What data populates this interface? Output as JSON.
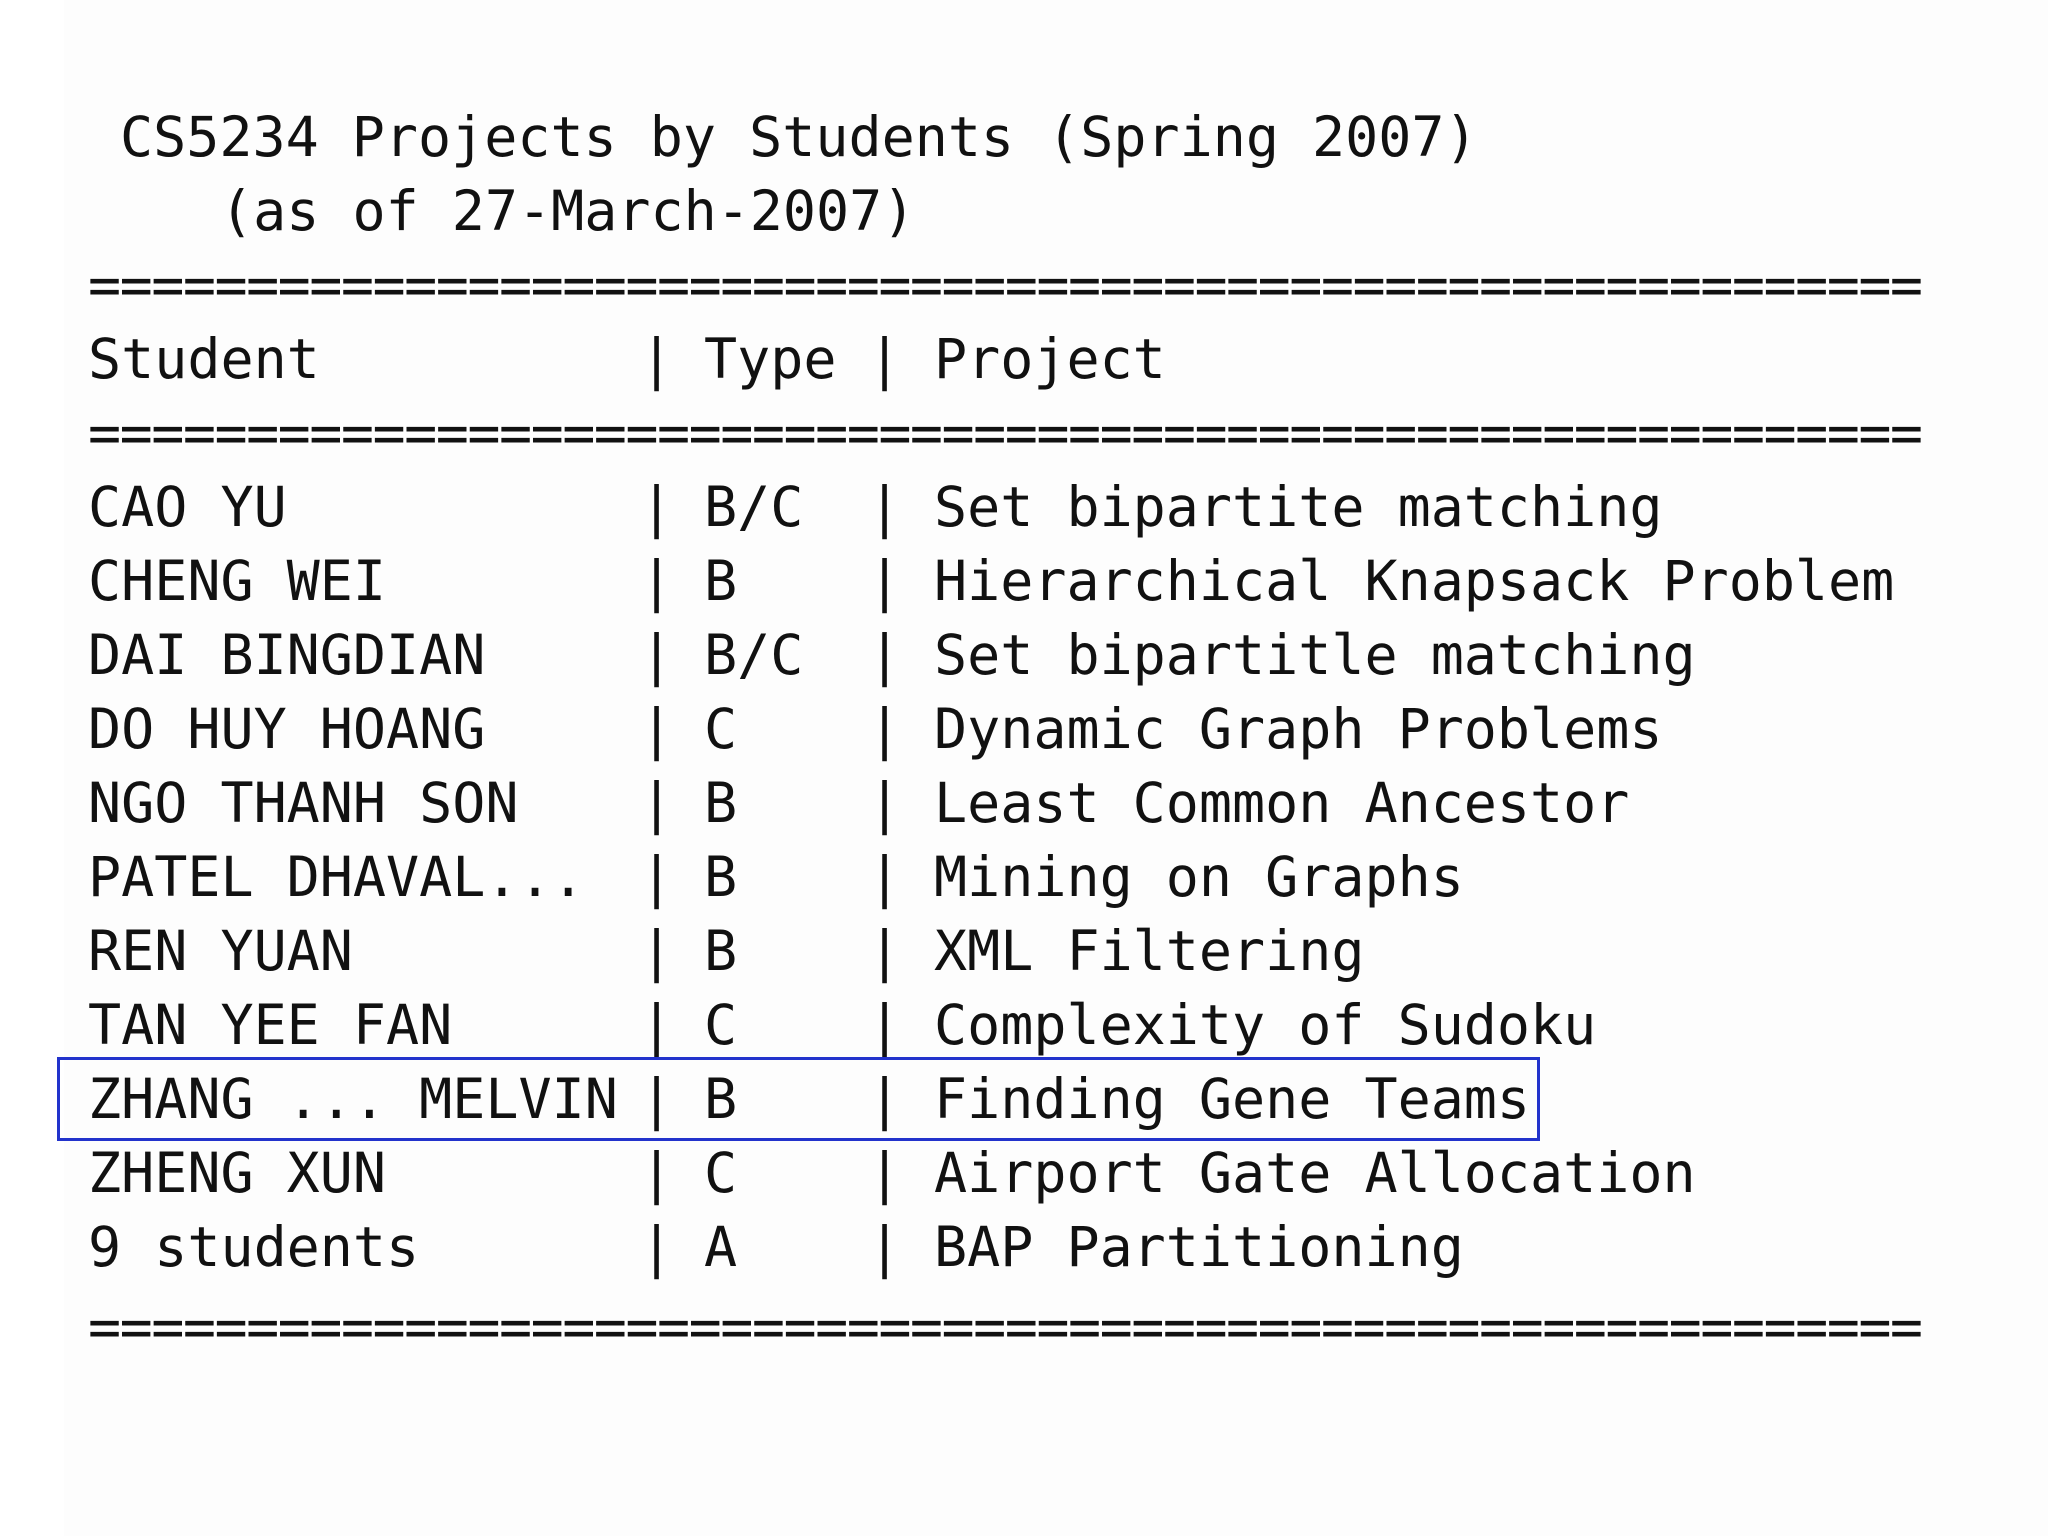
{
  "title": "CS5234 Projects by Students (Spring 2007)",
  "subtitle": "(as of 27-March-2007)",
  "rule": "==========================================================",
  "separator": "|",
  "headers": {
    "student": "Student",
    "type": "Type",
    "project": "Project"
  },
  "rows": [
    {
      "student": "CAO YU",
      "type": "B/C",
      "project": "Set bipartite matching"
    },
    {
      "student": "CHENG WEI",
      "type": "B",
      "project": "Hierarchical Knapsack Problem"
    },
    {
      "student": "DAI BINGDIAN",
      "type": "B/C",
      "project": "Set bipartitle matching"
    },
    {
      "student": "DO HUY HOANG",
      "type": "C",
      "project": "Dynamic Graph Problems"
    },
    {
      "student": "NGO THANH SON",
      "type": "B",
      "project": "Least Common Ancestor"
    },
    {
      "student": "PATEL DHAVAL...",
      "type": "B",
      "project": "Mining on Graphs"
    },
    {
      "student": "REN YUAN",
      "type": "B",
      "project": "XML Filtering"
    },
    {
      "student": "TAN YEE FAN",
      "type": "C",
      "project": "Complexity of Sudoku"
    },
    {
      "student": "ZHANG ... MELVIN",
      "type": "B",
      "project": "Finding Gene Teams"
    },
    {
      "student": "ZHENG XUN",
      "type": "C",
      "project": "Airport Gate Allocation"
    },
    {
      "student": "9 students",
      "type": "A",
      "project": "BAP Partitioning"
    }
  ],
  "highlighted_row": 8,
  "colors": {
    "text": "#111111",
    "highlight_border": "#2233cc",
    "background": "#ffffff"
  }
}
